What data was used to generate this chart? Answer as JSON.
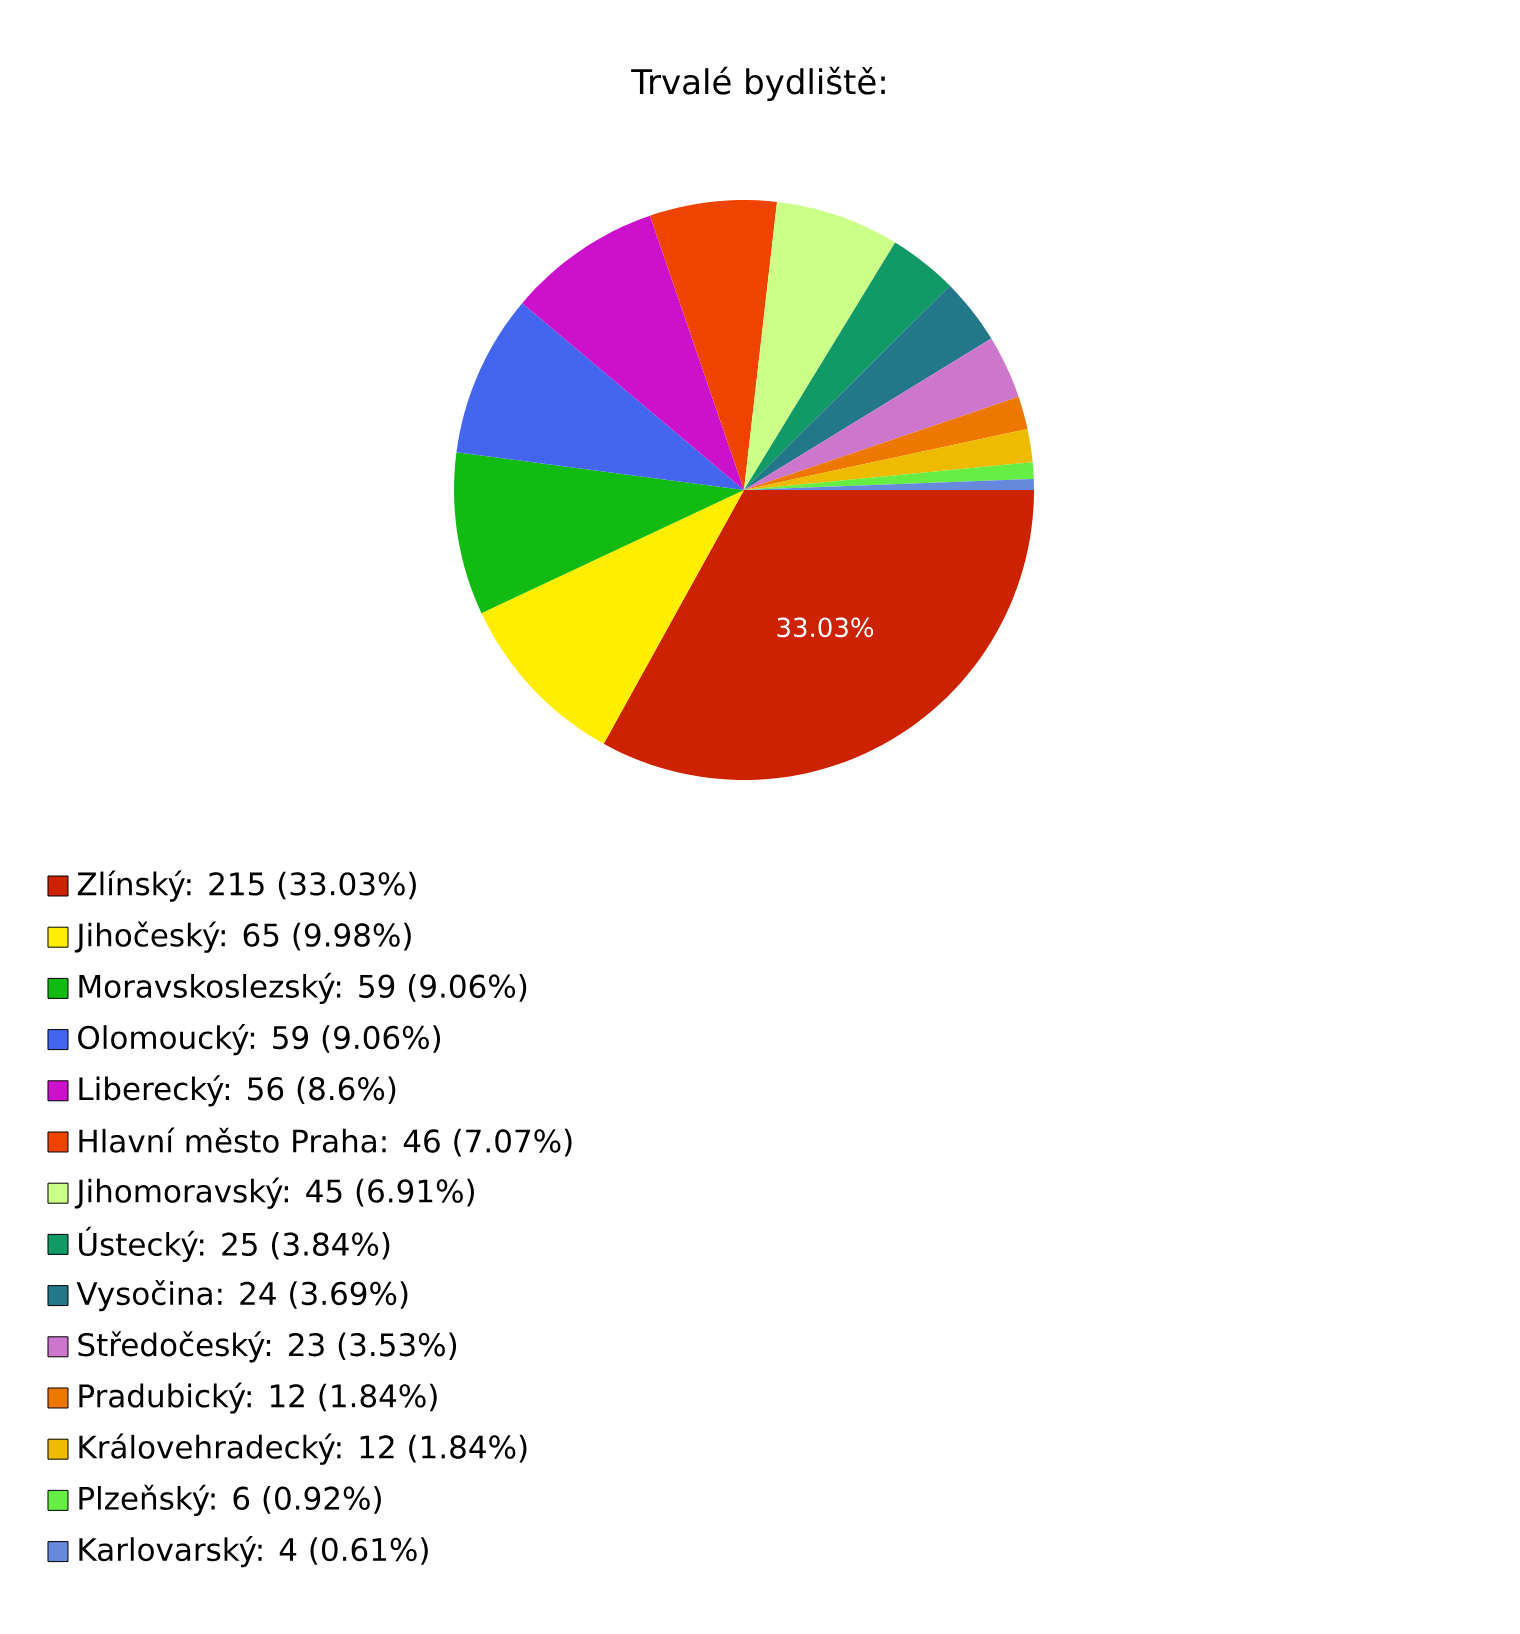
{
  "chart_data": {
    "type": "pie",
    "title": "Trvalé bydliště:",
    "categories": [
      "Zlínský: 215 (33.03%)",
      "Jihočeský: 65 (9.98%)",
      "Moravskoslezský: 59 (9.06%)",
      "Olomoucký: 59 (9.06%)",
      "Liberecký: 56 (8.6%)",
      "Hlavní město Praha: 46 (7.07%)",
      "Jihomoravský: 45 (6.91%)",
      "Ústecký: 25 (3.84%)",
      "Vysočina: 24 (3.69%)",
      "Středočeský: 23 (3.53%)",
      "Pradubický: 12 (1.84%)",
      "Královehradecký: 12 (1.84%)",
      "Plzeňský: 6 (0.92%)",
      "Karlovarský: 4 (0.61%)"
    ],
    "values": [
      33.03,
      9.98,
      9.06,
      9.06,
      8.6,
      7.07,
      6.91,
      3.84,
      3.69,
      3.53,
      1.84,
      1.84,
      0.92,
      0.61
    ],
    "value_labels": [
      "33.03%",
      null,
      null,
      null,
      null,
      null,
      null,
      null,
      null,
      null,
      null,
      null,
      null,
      null
    ],
    "colors": [
      "#cc2200",
      "#ffee00",
      "#11bb11",
      "#4466ee",
      "#cc11cc",
      "#ee4400",
      "#ccff88",
      "#119966",
      "#227788",
      "#cc77cc",
      "#ee7700",
      "#eebb00",
      "#66ee44",
      "#6688dd"
    ],
    "legend": "bottom"
  }
}
